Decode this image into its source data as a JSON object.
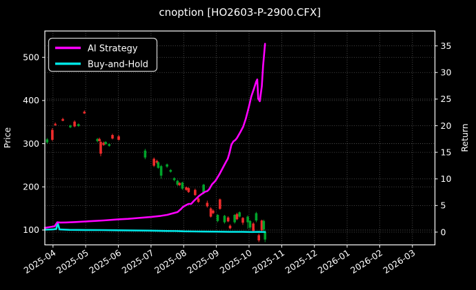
{
  "chart_data": {
    "type": "candlestick_with_lines",
    "title": "cnoption [HO2603-P-2900.CFX]",
    "grid": true,
    "x_axis": {
      "tick_labels": [
        "2025-04",
        "2025-05",
        "2025-06",
        "2025-07",
        "2025-08",
        "2025-09",
        "2025-10",
        "2025-11",
        "2025-12",
        "2026-01",
        "2026-02",
        "2026-03"
      ],
      "range_months": [
        -0.25,
        11.69
      ]
    },
    "y_left": {
      "label": "Price",
      "ticks": [
        100,
        200,
        300,
        400,
        500
      ],
      "range": [
        65.6,
        561.0
      ]
    },
    "y_right": {
      "label": "Return",
      "ticks": [
        0,
        5,
        10,
        15,
        20,
        25,
        30,
        35
      ],
      "range": [
        -2.4,
        37.8
      ]
    },
    "legend": {
      "position": "upper-left",
      "items": [
        {
          "label": "AI Strategy",
          "color": "#ff00ff"
        },
        {
          "label": "Buy-and-Hold",
          "color": "#00e5e5"
        }
      ]
    },
    "series": [
      {
        "name": "AI Strategy",
        "color": "#ff00ff",
        "axis": "right",
        "points": [
          [
            -0.25,
            0.8
          ],
          [
            -0.1,
            0.95
          ],
          [
            0.05,
            1.1
          ],
          [
            0.13,
            1.85
          ],
          [
            0.22,
            1.8
          ],
          [
            0.4,
            1.82
          ],
          [
            0.7,
            1.9
          ],
          [
            1.0,
            2.0
          ],
          [
            1.3,
            2.1
          ],
          [
            1.55,
            2.2
          ],
          [
            2.0,
            2.4
          ],
          [
            2.3,
            2.5
          ],
          [
            2.6,
            2.65
          ],
          [
            3.0,
            2.85
          ],
          [
            3.3,
            3.05
          ],
          [
            3.5,
            3.25
          ],
          [
            3.62,
            3.45
          ],
          [
            3.81,
            3.76
          ],
          [
            3.92,
            4.35
          ],
          [
            3.98,
            4.75
          ],
          [
            4.08,
            5.1
          ],
          [
            4.15,
            5.3
          ],
          [
            4.23,
            5.32
          ],
          [
            4.3,
            5.8
          ],
          [
            4.36,
            6.15
          ],
          [
            4.47,
            6.8
          ],
          [
            4.57,
            7.25
          ],
          [
            4.66,
            7.6
          ],
          [
            4.72,
            7.7
          ],
          [
            4.78,
            8.05
          ],
          [
            4.87,
            9.0
          ],
          [
            4.95,
            9.5
          ],
          [
            5.0,
            9.9
          ],
          [
            5.1,
            10.95
          ],
          [
            5.2,
            12.1
          ],
          [
            5.29,
            13.15
          ],
          [
            5.35,
            13.8
          ],
          [
            5.4,
            14.85
          ],
          [
            5.46,
            16.4
          ],
          [
            5.52,
            17.05
          ],
          [
            5.58,
            17.3
          ],
          [
            5.63,
            17.7
          ],
          [
            5.73,
            18.75
          ],
          [
            5.82,
            19.8
          ],
          [
            5.9,
            21.3
          ],
          [
            5.99,
            23.4
          ],
          [
            6.07,
            25.5
          ],
          [
            6.16,
            27.15
          ],
          [
            6.22,
            28.3
          ],
          [
            6.25,
            28.7
          ],
          [
            6.28,
            25.1
          ],
          [
            6.33,
            24.6
          ],
          [
            6.39,
            27.4
          ],
          [
            6.43,
            31.3
          ],
          [
            6.49,
            35.4
          ]
        ]
      },
      {
        "name": "Buy-and-Hold",
        "color": "#00e5e5",
        "axis": "right",
        "points": [
          [
            -0.25,
            0.45
          ],
          [
            0.0,
            0.5
          ],
          [
            0.1,
            0.6
          ],
          [
            0.14,
            1.75
          ],
          [
            0.2,
            0.5
          ],
          [
            0.5,
            0.42
          ],
          [
            1.0,
            0.4
          ],
          [
            1.5,
            0.38
          ],
          [
            2.0,
            0.35
          ],
          [
            2.5,
            0.3
          ],
          [
            3.0,
            0.28
          ],
          [
            3.5,
            0.22
          ],
          [
            3.8,
            0.2
          ],
          [
            4.0,
            0.15
          ],
          [
            4.3,
            0.12
          ],
          [
            4.6,
            0.1
          ],
          [
            5.0,
            0.08
          ],
          [
            5.4,
            0.05
          ],
          [
            5.8,
            0.05
          ],
          [
            6.1,
            0.02
          ],
          [
            6.3,
            0.05
          ],
          [
            6.49,
            0.02
          ]
        ]
      }
    ],
    "candles": {
      "axis": "left",
      "up_color": "#00a32a",
      "down_color": "#ef2b2b",
      "ohlc": [
        [
          -0.18,
          303,
          313,
          300,
          310
        ],
        [
          -0.02,
          332,
          336,
          306,
          309
        ],
        [
          0.07,
          346,
          349,
          341,
          343
        ],
        [
          0.3,
          357,
          360,
          352,
          353
        ],
        [
          0.53,
          338,
          344,
          336,
          342
        ],
        [
          0.66,
          351,
          354,
          338,
          340
        ],
        [
          0.78,
          341,
          347,
          339,
          345
        ],
        [
          0.96,
          374,
          377,
          369,
          370
        ],
        [
          1.36,
          306,
          313,
          303,
          311
        ],
        [
          1.42,
          311,
          314,
          305,
          306
        ],
        [
          1.46,
          304,
          307,
          271,
          277
        ],
        [
          1.55,
          302,
          305,
          295,
          297
        ],
        [
          1.61,
          299,
          306,
          297,
          304
        ],
        [
          1.72,
          295,
          301,
          293,
          299
        ],
        [
          1.82,
          320,
          323,
          310,
          312
        ],
        [
          2.01,
          317,
          320,
          307,
          309
        ],
        [
          2.82,
          268,
          288,
          264,
          284
        ],
        [
          3.09,
          265,
          268,
          246,
          249
        ],
        [
          3.18,
          260,
          263,
          253,
          256
        ],
        [
          3.22,
          244,
          259,
          242,
          257
        ],
        [
          3.31,
          226,
          251,
          219,
          248
        ],
        [
          3.49,
          247,
          254,
          244,
          252
        ],
        [
          3.6,
          235,
          241,
          233,
          239
        ],
        [
          3.71,
          216,
          222,
          213,
          220
        ],
        [
          3.81,
          205,
          216,
          202,
          214
        ],
        [
          3.87,
          209,
          211,
          202,
          204
        ],
        [
          3.96,
          196,
          212,
          193,
          210
        ],
        [
          4.08,
          199,
          201,
          191,
          193
        ],
        [
          4.15,
          197,
          199,
          186,
          188
        ],
        [
          4.35,
          193,
          196,
          179,
          181
        ],
        [
          4.45,
          173,
          176,
          163,
          165
        ],
        [
          4.61,
          186,
          207,
          183,
          205
        ],
        [
          4.72,
          163,
          168,
          152,
          155
        ],
        [
          4.83,
          150,
          153,
          129,
          131
        ],
        [
          4.9,
          145,
          148,
          137,
          139
        ],
        [
          5.04,
          121,
          137,
          118,
          135
        ],
        [
          5.11,
          171,
          173,
          147,
          149
        ],
        [
          5.25,
          118,
          135,
          115,
          133
        ],
        [
          5.36,
          129,
          132,
          118,
          120
        ],
        [
          5.42,
          110,
          113,
          102,
          104
        ],
        [
          5.56,
          118,
          137,
          115,
          135
        ],
        [
          5.63,
          137,
          140,
          123,
          125
        ],
        [
          5.71,
          131,
          143,
          129,
          141
        ],
        [
          5.81,
          128,
          130,
          112,
          117
        ],
        [
          5.96,
          118,
          134,
          103,
          131
        ],
        [
          6.03,
          106,
          123,
          102,
          121
        ],
        [
          6.13,
          115,
          118,
          95,
          98
        ],
        [
          6.22,
          122,
          142,
          118,
          139
        ],
        [
          6.3,
          88,
          92,
          72,
          76
        ],
        [
          6.39,
          122,
          124,
          96,
          99
        ],
        [
          6.45,
          101,
          124,
          97,
          121
        ],
        [
          6.49,
          78,
          99,
          72,
          96
        ]
      ]
    },
    "colors": {
      "background": "#000000",
      "text": "#ffffff",
      "grid": "#ffffff",
      "spine": "#ffffff"
    }
  }
}
